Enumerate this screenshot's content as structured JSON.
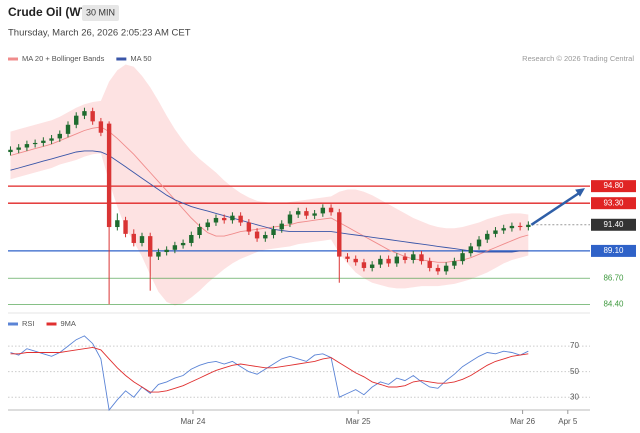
{
  "header": {
    "title": "Crude Oil (WTI)",
    "interval": "30 MIN",
    "datetime": "Thursday, March 26, 2026 2:05:23 AM CET",
    "copyright": "Research © 2026 Trading Central"
  },
  "chart_data": [
    {
      "type": "candlestick",
      "categories": [
        null,
        null,
        null,
        null,
        null,
        null,
        null,
        null,
        null,
        null,
        null,
        null,
        null,
        null,
        null,
        null,
        null,
        null,
        null,
        null,
        null,
        null,
        null,
        null,
        null,
        null,
        null,
        null,
        null,
        null,
        null,
        null,
        null,
        null,
        null,
        null,
        null,
        null,
        null,
        null,
        null,
        null,
        null,
        null,
        null,
        null,
        null,
        null,
        null,
        null,
        null,
        null,
        null,
        null,
        null,
        null,
        null,
        null,
        null,
        null,
        null,
        null,
        null,
        null
      ],
      "xlim": [
        -0.3,
        70.5
      ],
      "ylim": [
        83.9,
        105.9
      ],
      "up_color": "#1e6b2e",
      "down_color": "#d93434",
      "open": [
        97.8,
        98.0,
        98.2,
        98.5,
        98.6,
        98.8,
        99.0,
        99.4,
        100.2,
        101.0,
        101.4,
        100.5,
        100.3,
        91.2,
        91.8,
        90.6,
        89.8,
        90.4,
        88.6,
        89.0,
        89.2,
        89.6,
        89.8,
        90.5,
        91.2,
        91.6,
        92.0,
        91.8,
        92.2,
        91.6,
        90.8,
        90.2,
        90.5,
        91.0,
        91.5,
        92.3,
        92.6,
        92.2,
        92.4,
        92.9,
        92.5,
        88.6,
        88.4,
        88.1,
        87.6,
        87.9,
        88.4,
        88.0,
        88.6,
        88.3,
        88.8,
        88.2,
        87.6,
        87.3,
        87.8,
        88.2,
        88.9,
        89.5,
        90.1,
        90.6,
        90.9,
        91.1,
        91.3,
        91.2
      ],
      "high": [
        98.3,
        98.5,
        98.8,
        98.9,
        99.1,
        99.3,
        99.7,
        100.5,
        101.3,
        101.7,
        101.7,
        100.8,
        100.5,
        92.4,
        92.1,
        91.0,
        90.7,
        90.7,
        89.3,
        89.5,
        89.9,
        90.1,
        90.8,
        91.5,
        91.9,
        92.3,
        92.3,
        92.5,
        92.5,
        91.9,
        91.1,
        90.8,
        91.3,
        91.8,
        92.6,
        92.9,
        92.9,
        92.7,
        93.2,
        93.2,
        92.8,
        88.9,
        88.7,
        88.4,
        88.2,
        88.7,
        88.7,
        88.9,
        88.9,
        89.1,
        89.1,
        88.5,
        87.9,
        88.1,
        88.5,
        89.2,
        89.8,
        90.4,
        90.9,
        91.2,
        91.4,
        91.6,
        91.6,
        91.7
      ],
      "low": [
        97.5,
        97.7,
        97.9,
        98.2,
        98.3,
        98.5,
        98.7,
        99.1,
        99.9,
        100.7,
        100.2,
        99.2,
        84.4,
        90.9,
        90.3,
        89.5,
        89.5,
        85.6,
        88.3,
        88.7,
        88.9,
        89.3,
        89.5,
        90.2,
        90.9,
        91.3,
        91.5,
        91.5,
        91.3,
        90.5,
        89.9,
        89.9,
        90.2,
        90.7,
        91.2,
        92.0,
        91.9,
        91.9,
        92.1,
        92.2,
        86.3,
        88.1,
        87.8,
        87.3,
        87.3,
        87.6,
        87.7,
        87.7,
        88.0,
        88.0,
        87.9,
        87.3,
        87.0,
        87.0,
        87.5,
        87.9,
        88.6,
        89.2,
        89.8,
        90.3,
        90.6,
        90.8,
        90.9,
        90.9
      ],
      "close": [
        98.0,
        98.2,
        98.5,
        98.6,
        98.8,
        99.0,
        99.4,
        100.2,
        101.0,
        101.4,
        100.5,
        99.5,
        91.2,
        91.8,
        90.6,
        89.8,
        90.4,
        88.6,
        89.0,
        89.2,
        89.6,
        89.8,
        90.5,
        91.2,
        91.6,
        92.0,
        91.8,
        92.2,
        91.6,
        90.8,
        90.2,
        90.5,
        91.0,
        91.5,
        92.3,
        92.6,
        92.2,
        92.4,
        92.9,
        92.5,
        88.6,
        88.4,
        88.1,
        87.6,
        87.9,
        88.4,
        88.0,
        88.6,
        88.3,
        88.8,
        88.2,
        87.6,
        87.3,
        87.8,
        88.2,
        88.9,
        89.5,
        90.1,
        90.6,
        90.9,
        91.1,
        91.3,
        91.2,
        91.4
      ],
      "series": [
        {
          "name": "MA 20 + Bollinger Bands",
          "color": "#f08c8c",
          "band_color": "#fde2e2",
          "values": [
            97.5,
            97.7,
            97.9,
            98.1,
            98.3,
            98.5,
            98.8,
            99.1,
            99.4,
            99.7,
            99.9,
            100.0,
            99.6,
            99.0,
            98.3,
            97.6,
            96.8,
            96.0,
            95.2,
            94.4,
            93.6,
            92.8,
            92.0,
            91.3,
            90.7,
            90.4,
            90.4,
            90.6,
            90.8,
            90.9,
            91.0,
            91.1,
            91.2,
            91.3,
            91.4,
            91.6,
            91.7,
            91.8,
            91.9,
            92.0,
            91.6,
            91.2,
            90.8,
            90.4,
            90.0,
            89.6,
            89.2,
            88.9,
            88.6,
            88.4,
            88.3,
            88.2,
            88.1,
            88.1,
            88.2,
            88.3,
            88.5,
            88.8,
            89.1,
            89.4,
            89.7,
            90.0,
            90.3,
            90.5
          ],
          "upper": [
            99.6,
            99.8,
            100.0,
            100.2,
            100.4,
            100.6,
            100.9,
            101.3,
            101.7,
            102.0,
            102.2,
            102.3,
            104.0,
            105.0,
            105.5,
            105.3,
            104.5,
            103.5,
            102.3,
            101.0,
            99.8,
            98.8,
            97.9,
            97.2,
            96.6,
            96.0,
            95.3,
            94.7,
            94.2,
            93.8,
            93.5,
            93.4,
            93.3,
            93.3,
            93.4,
            93.5,
            93.6,
            93.7,
            93.8,
            93.9,
            94.3,
            94.5,
            94.5,
            94.3,
            94.0,
            93.6,
            93.2,
            92.8,
            92.4,
            92.0,
            91.7,
            91.4,
            91.2,
            91.1,
            91.1,
            91.2,
            91.4,
            91.6,
            91.9,
            92.1,
            92.3,
            92.4,
            92.4,
            92.3
          ],
          "lower": [
            95.4,
            95.6,
            95.8,
            96.0,
            96.2,
            96.4,
            96.7,
            96.9,
            97.1,
            97.4,
            97.6,
            97.7,
            95.2,
            93.0,
            91.1,
            89.9,
            88.6,
            87.0,
            85.5,
            84.6,
            84.3,
            84.5,
            85.0,
            85.6,
            86.3,
            86.9,
            87.5,
            88.0,
            88.4,
            88.7,
            89.0,
            89.2,
            89.3,
            89.4,
            89.5,
            89.7,
            89.8,
            89.9,
            90.0,
            90.1,
            88.9,
            88.0,
            87.2,
            86.7,
            86.3,
            86.1,
            85.9,
            85.8,
            85.8,
            85.9,
            86.0,
            86.0,
            86.0,
            86.1,
            86.2,
            86.4,
            86.6,
            86.9,
            87.2,
            87.6,
            88.0,
            88.3,
            88.5,
            88.7
          ]
        },
        {
          "name": "MA 50",
          "color": "#3a56a8",
          "values": [
            96.2,
            96.4,
            96.6,
            96.8,
            97.0,
            97.2,
            97.4,
            97.6,
            97.8,
            97.9,
            97.9,
            97.8,
            97.5,
            97.0,
            96.5,
            96.0,
            95.5,
            95.0,
            94.5,
            94.0,
            93.6,
            93.3,
            93.0,
            92.8,
            92.6,
            92.4,
            92.2,
            92.0,
            91.8,
            91.6,
            91.4,
            91.2,
            91.0,
            90.9,
            90.8,
            90.8,
            90.8,
            90.8,
            90.8,
            90.8,
            90.7,
            90.6,
            90.5,
            90.4,
            90.3,
            90.2,
            90.1,
            90.0,
            89.9,
            89.8,
            89.7,
            89.6,
            89.5,
            89.4,
            89.3,
            89.2,
            89.1,
            89.0,
            89.0,
            89.0,
            89.0,
            89.0,
            89.1,
            89.1
          ]
        }
      ],
      "levels": [
        {
          "value": 94.8,
          "label": "94.80",
          "color": "#e02424",
          "label_style": "box",
          "line": "solid"
        },
        {
          "value": 93.3,
          "label": "93.30",
          "color": "#e02424",
          "label_style": "box",
          "line": "solid"
        },
        {
          "value": 91.4,
          "label": "91.40",
          "color": "#333333",
          "label_style": "box",
          "line": "dotted"
        },
        {
          "value": 89.1,
          "label": "89.10",
          "color": "#2f62c8",
          "label_style": "box",
          "line": "solid"
        },
        {
          "value": 86.7,
          "label": "86.70",
          "color": "#3f9a3f",
          "label_style": "text",
          "line": "solid"
        },
        {
          "value": 84.4,
          "label": "84.40",
          "color": "#3f9a3f",
          "label_style": "text",
          "line": "solid"
        }
      ],
      "arrow_color": "#2f5fa8"
    },
    {
      "type": "line",
      "categories": [
        null,
        null,
        null,
        null,
        null,
        null,
        null,
        null,
        null,
        null,
        null,
        null,
        null,
        null,
        null,
        null,
        null,
        null,
        null,
        null,
        null,
        null,
        null,
        null,
        null,
        null,
        null,
        null,
        null,
        null,
        null,
        null,
        null,
        null,
        null,
        null,
        null,
        null,
        null,
        null,
        null,
        null,
        null,
        null,
        null,
        null,
        null,
        null,
        null,
        null,
        null,
        null,
        null,
        null,
        null,
        null,
        null,
        null,
        null,
        null,
        null,
        null,
        null,
        null
      ],
      "xlim": [
        -0.3,
        70.5
      ],
      "ylim": [
        20,
        92
      ],
      "yticks": [
        70,
        50,
        30
      ],
      "xticks": [
        {
          "value": 22.2,
          "label": "Mar 24"
        },
        {
          "value": 42.3,
          "label": "Mar 25"
        },
        {
          "value": 62.3,
          "label": "Mar 26"
        },
        {
          "value": 67.8,
          "label": "Apr 5"
        }
      ],
      "grid": true,
      "series": [
        {
          "name": "RSI",
          "color": "#5b84d6",
          "values": [
            65,
            63,
            68,
            66,
            64,
            62,
            65,
            70,
            75,
            78,
            72,
            60,
            20,
            28,
            35,
            30,
            38,
            33,
            40,
            42,
            45,
            47,
            52,
            55,
            57,
            58,
            56,
            58,
            54,
            50,
            48,
            52,
            56,
            60,
            62,
            60,
            58,
            63,
            64,
            61,
            30,
            33,
            36,
            32,
            38,
            42,
            40,
            45,
            43,
            47,
            42,
            38,
            37,
            43,
            48,
            54,
            58,
            62,
            65,
            64,
            66,
            65,
            63,
            66
          ]
        },
        {
          "name": "9MA",
          "color": "#e03030",
          "values": [
            64,
            64,
            65,
            65,
            65,
            65,
            65,
            66,
            67,
            68,
            69,
            67,
            60,
            53,
            47,
            42,
            38,
            34,
            34,
            35,
            37,
            39,
            42,
            45,
            48,
            51,
            53,
            55,
            56,
            55,
            54,
            53,
            53,
            54,
            55,
            56,
            57,
            58,
            60,
            61,
            57,
            53,
            49,
            46,
            42,
            40,
            38,
            38,
            39,
            42,
            43,
            42,
            41,
            41,
            42,
            44,
            47,
            51,
            55,
            58,
            60,
            62,
            63,
            64
          ]
        }
      ]
    }
  ]
}
